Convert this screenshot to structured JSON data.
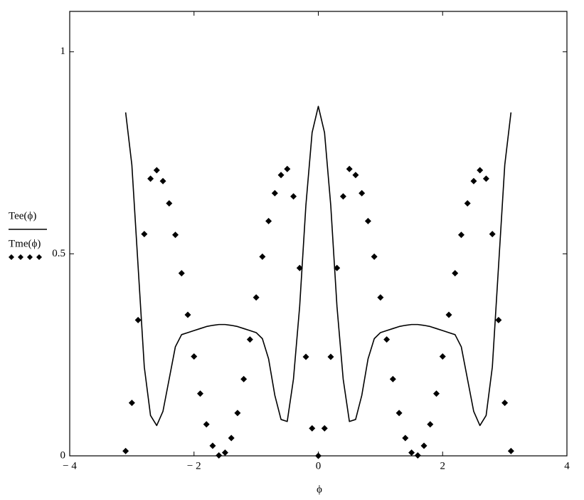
{
  "chart_data": {
    "type": "line",
    "x_label": "ϕ",
    "x": [
      -3.1,
      -3,
      -2.9,
      -2.8,
      -2.7,
      -2.6,
      -2.5,
      -2.4,
      -2.3,
      -2.2,
      -2.1,
      -2,
      -1.9,
      -1.8,
      -1.7,
      -1.6,
      -1.5,
      -1.4,
      -1.3,
      -1.2,
      -1.1,
      -1,
      -0.9,
      -0.8,
      -0.7,
      -0.6,
      -0.5,
      -0.4,
      -0.3,
      -0.2,
      -0.1,
      0,
      0.1,
      0.2,
      0.3,
      0.4,
      0.5,
      0.6,
      0.7,
      0.8,
      0.9,
      1,
      1.1,
      1.2,
      1.3,
      1.4,
      1.5,
      1.6,
      1.7,
      1.8,
      1.9,
      2,
      2.1,
      2.2,
      2.3,
      2.4,
      2.5,
      2.6,
      2.7,
      2.8,
      2.9,
      3,
      3.1
    ],
    "series": [
      {
        "name": "Tee(ϕ)",
        "color": "#000000",
        "style": "solid",
        "values": [
          0.85,
          0.72,
          0.47,
          0.22,
          0.1,
          0.075,
          0.11,
          0.19,
          0.27,
          0.3,
          0.305,
          0.31,
          0.315,
          0.32,
          0.323,
          0.325,
          0.325,
          0.323,
          0.32,
          0.315,
          0.31,
          0.305,
          0.29,
          0.24,
          0.15,
          0.09,
          0.085,
          0.19,
          0.37,
          0.62,
          0.8,
          0.865,
          0.8,
          0.62,
          0.37,
          0.19,
          0.085,
          0.09,
          0.15,
          0.24,
          0.29,
          0.305,
          0.31,
          0.315,
          0.32,
          0.323,
          0.325,
          0.325,
          0.323,
          0.32,
          0.315,
          0.31,
          0.305,
          0.3,
          0.27,
          0.19,
          0.11,
          0.075,
          0.1,
          0.22,
          0.47,
          0.72,
          0.85
        ]
      },
      {
        "name": "Tme(ϕ)",
        "color": "#000000",
        "style": "dotted",
        "values": [
          0.012,
          0.131,
          0.336,
          0.549,
          0.686,
          0.707,
          0.68,
          0.625,
          0.547,
          0.452,
          0.349,
          0.246,
          0.154,
          0.078,
          0.025,
          0.001,
          0.008,
          0.044,
          0.106,
          0.19,
          0.288,
          0.392,
          0.493,
          0.581,
          0.65,
          0.695,
          0.71,
          0.642,
          0.465,
          0.245,
          0.068,
          0,
          0.068,
          0.245,
          0.465,
          0.642,
          0.71,
          0.695,
          0.65,
          0.581,
          0.493,
          0.392,
          0.288,
          0.19,
          0.106,
          0.044,
          0.008,
          0.001,
          0.025,
          0.078,
          0.154,
          0.246,
          0.349,
          0.452,
          0.547,
          0.625,
          0.68,
          0.707,
          0.686,
          0.549,
          0.336,
          0.131,
          0.012
        ]
      }
    ],
    "xlim": [
      -4,
      4
    ],
    "ylim": [
      0,
      1.1
    ],
    "xticks": [
      {
        "value": -4,
        "label": "− 4"
      },
      {
        "value": -2,
        "label": "− 2"
      },
      0,
      2,
      4
    ],
    "yticks": [
      0,
      0.5,
      1
    ]
  }
}
